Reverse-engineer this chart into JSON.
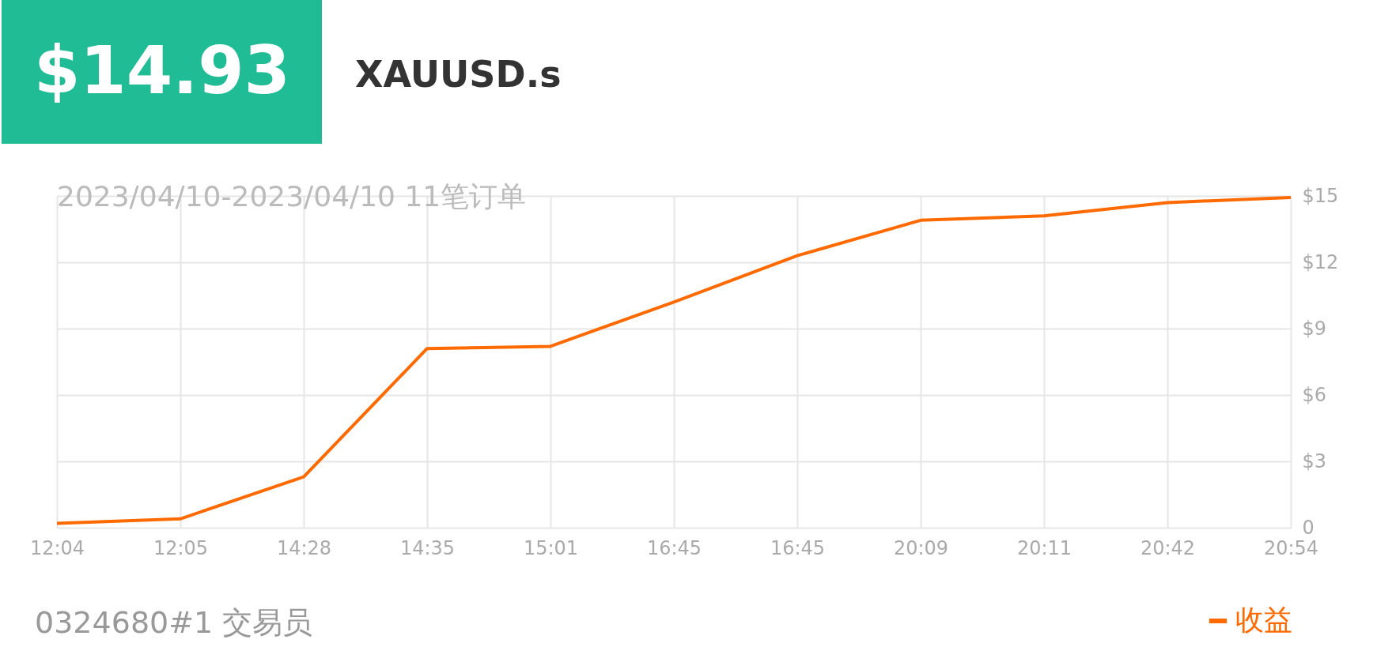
{
  "chart_data": {
    "type": "line",
    "title": "XAUUSD.s",
    "subtitle": "2023/04/10-2023/04/10 11笔订单",
    "annotations": [
      "$14.93",
      "0324680#1    交易员"
    ],
    "categories": [
      "12:04",
      "12:05",
      "14:28",
      "14:35",
      "15:01",
      "16:45",
      "16:45",
      "20:09",
      "20:11",
      "20:42",
      "20:54"
    ],
    "series": [
      {
        "name": "收益",
        "color": "#ff6a00",
        "values": [
          0.2,
          0.4,
          2.3,
          8.1,
          8.2,
          10.2,
          12.3,
          13.9,
          14.1,
          14.7,
          14.93
        ]
      }
    ],
    "ylim": [
      0,
      15
    ],
    "yticks": [
      0,
      {
        "value": 3,
        "label": "$3"
      },
      {
        "value": 6,
        "label": "$6"
      },
      {
        "value": 9,
        "label": "$9"
      },
      {
        "value": 12,
        "label": "$12"
      },
      {
        "value": 15,
        "label": "$15"
      }
    ],
    "grid": true,
    "legend": "bottom right",
    "marker": "none",
    "line_style": "solid"
  }
}
